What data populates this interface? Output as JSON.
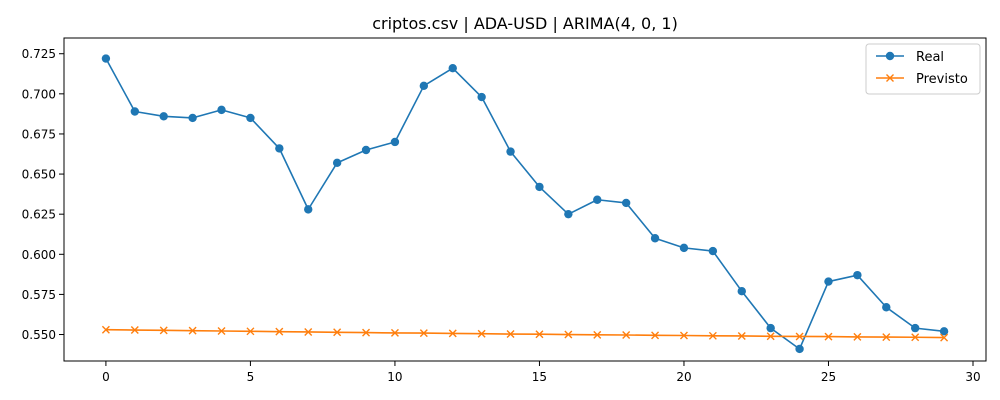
{
  "chart_data": {
    "type": "line",
    "title": "criptos.csv | ADA-USD | ARIMA(4, 0, 1)",
    "xlabel": "",
    "ylabel": "",
    "xlim": [
      -1.45,
      30.45
    ],
    "ylim": [
      0.5335,
      0.7348
    ],
    "x_ticks": [
      0,
      5,
      10,
      15,
      20,
      25,
      30
    ],
    "y_ticks": [
      0.55,
      0.575,
      0.6,
      0.625,
      0.65,
      0.675,
      0.7,
      0.725
    ],
    "grid": false,
    "legend_position": "top-right",
    "x": [
      0,
      1,
      2,
      3,
      4,
      5,
      6,
      7,
      8,
      9,
      10,
      11,
      12,
      13,
      14,
      15,
      16,
      17,
      18,
      19,
      20,
      21,
      22,
      23,
      24,
      25,
      26,
      27,
      28,
      29
    ],
    "series": [
      {
        "name": "Real",
        "color": "#1f77b4",
        "marker": "circle",
        "values": [
          0.722,
          0.689,
          0.686,
          0.685,
          0.69,
          0.685,
          0.666,
          0.628,
          0.657,
          0.665,
          0.67,
          0.705,
          0.716,
          0.698,
          0.664,
          0.642,
          0.625,
          0.634,
          0.632,
          0.61,
          0.604,
          0.602,
          0.577,
          0.554,
          0.541,
          0.583,
          0.587,
          0.567,
          0.554,
          0.552
        ]
      },
      {
        "name": "Previsto",
        "color": "#ff7f0e",
        "marker": "x",
        "values": [
          0.553,
          0.5528,
          0.5526,
          0.5524,
          0.5522,
          0.552,
          0.5518,
          0.5516,
          0.5514,
          0.5512,
          0.551,
          0.5509,
          0.5507,
          0.5505,
          0.5503,
          0.5502,
          0.55,
          0.5498,
          0.5497,
          0.5495,
          0.5494,
          0.5492,
          0.5491,
          0.5489,
          0.5488,
          0.5487,
          0.5485,
          0.5484,
          0.5483,
          0.5481
        ]
      }
    ]
  }
}
